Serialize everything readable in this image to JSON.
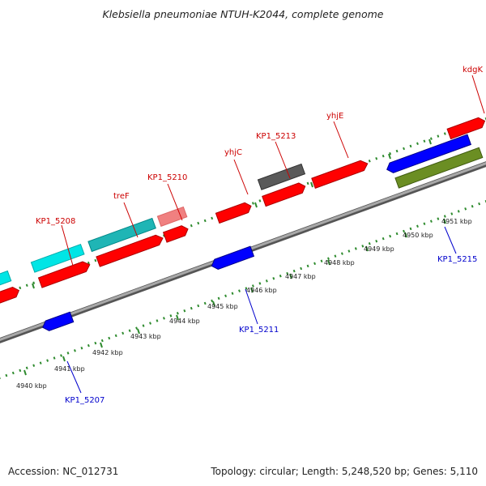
{
  "title": "Klebsiella pneumoniae NTUH-K2044, complete genome",
  "footer": {
    "accession": "Accession: NC_012731",
    "summary": "Topology: circular; Length: 5,248,520 bp; Genes: 5,110"
  },
  "colors": {
    "backbone": "#8c8c8c",
    "cds_red": "#ff0000",
    "cds_blue": "#0000ff",
    "cyan": "#00e5e5",
    "teal": "#1fb5b5",
    "pink": "#f08080",
    "gray_feature": "#5a5a5a",
    "olive": "#6b8e23",
    "dots": "#2e8b2e",
    "label_red": "#cc0000",
    "label_blue": "#0000cc"
  },
  "ticks": [
    {
      "label": "4940 kbp",
      "kbp": 4940
    },
    {
      "label": "4941 kbp",
      "kbp": 4941
    },
    {
      "label": "4942 kbp",
      "kbp": 4942
    },
    {
      "label": "4943 kbp",
      "kbp": 4943
    },
    {
      "label": "4944 kbp",
      "kbp": 4944
    },
    {
      "label": "4945 kbp",
      "kbp": 4945
    },
    {
      "label": "4946 kbp",
      "kbp": 4946
    },
    {
      "label": "4947 kbp",
      "kbp": 4947
    },
    {
      "label": "4948 kbp",
      "kbp": 4948
    },
    {
      "label": "4949 kbp",
      "kbp": 4949
    },
    {
      "label": "4950 kbp",
      "kbp": 4950
    },
    {
      "label": "4951 kbp",
      "kbp": 4951
    }
  ],
  "gene_labels": [
    {
      "name": "KP1_5208",
      "strand": "top"
    },
    {
      "name": "treF",
      "strand": "top"
    },
    {
      "name": "KP1_5210",
      "strand": "top"
    },
    {
      "name": "yhjC",
      "strand": "top"
    },
    {
      "name": "KP1_5213",
      "strand": "top"
    },
    {
      "name": "yhjE",
      "strand": "top"
    },
    {
      "name": "kdgK",
      "strand": "top"
    },
    {
      "name": "KP1_5207",
      "strand": "bottom"
    },
    {
      "name": "KP1_5211",
      "strand": "bottom"
    },
    {
      "name": "KP1_5215",
      "strand": "bottom"
    }
  ]
}
